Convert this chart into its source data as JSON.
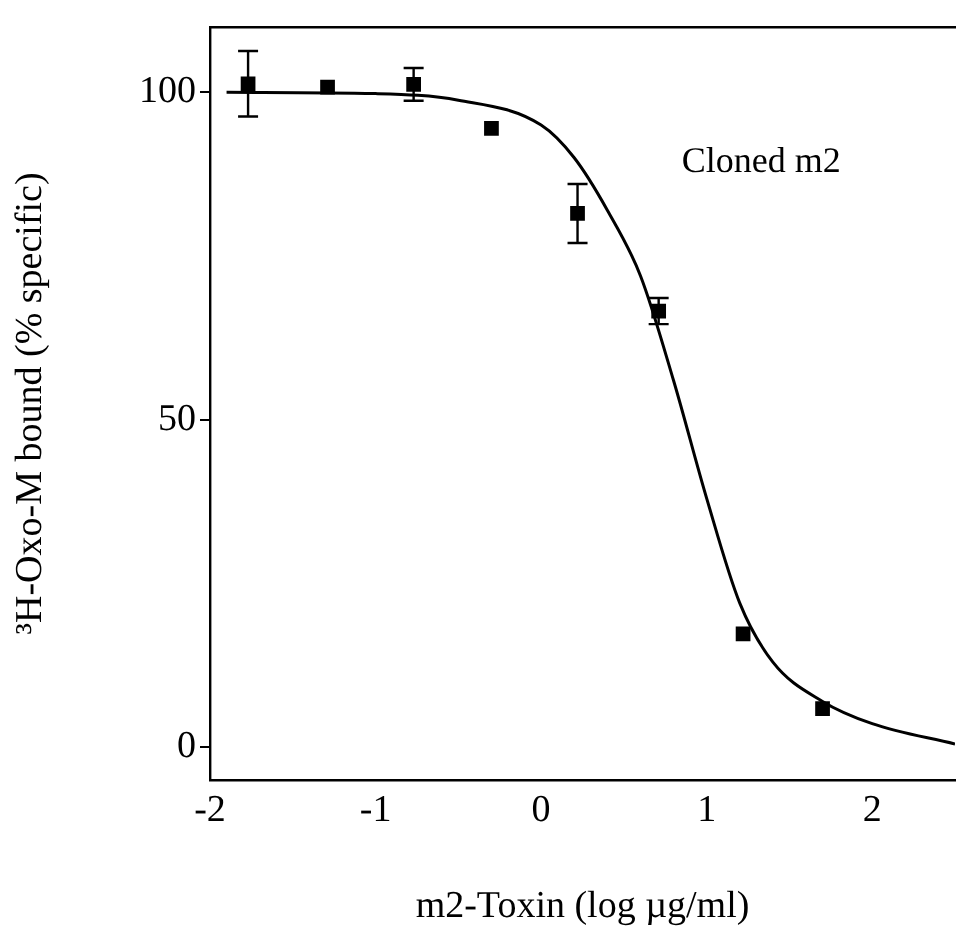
{
  "chart_data": {
    "type": "scatter",
    "xlabel": "m2-Toxin (log µg/ml)",
    "ylabel": "³H-Oxo-M bound (% specific)",
    "xlim": [
      -2,
      2.5
    ],
    "ylim": [
      -5,
      110
    ],
    "xticks": [
      -2,
      -1,
      0,
      1,
      2
    ],
    "yticks": [
      0,
      50,
      100
    ],
    "grid": false,
    "legend": false,
    "marker": "square",
    "annotations": [
      "Cloned m2"
    ],
    "series": [
      {
        "color": "#000000",
        "x": [
          -1.77,
          -1.29,
          -0.77,
          -0.3,
          0.22,
          0.71,
          1.22,
          1.7
        ],
        "values": [
          101.3,
          100.8,
          101.2,
          94.5,
          81.5,
          66.6,
          17.3,
          5.9
        ],
        "errors": [
          5,
          null,
          2.5,
          null,
          4.5,
          2,
          null,
          null
        ]
      },
      {
        "type": "line",
        "color": "#000000",
        "marker": "none",
        "x": [
          -1.9,
          -1,
          -0.5,
          0,
          0.2,
          0.4,
          0.6,
          0.8,
          1.0,
          1.2,
          1.4,
          1.7,
          2.0,
          2.5
        ],
        "values": [
          100,
          99.8,
          98.8,
          95,
          90,
          82,
          72,
          56,
          38,
          22,
          13,
          7,
          3.6,
          0.5
        ]
      }
    ]
  }
}
